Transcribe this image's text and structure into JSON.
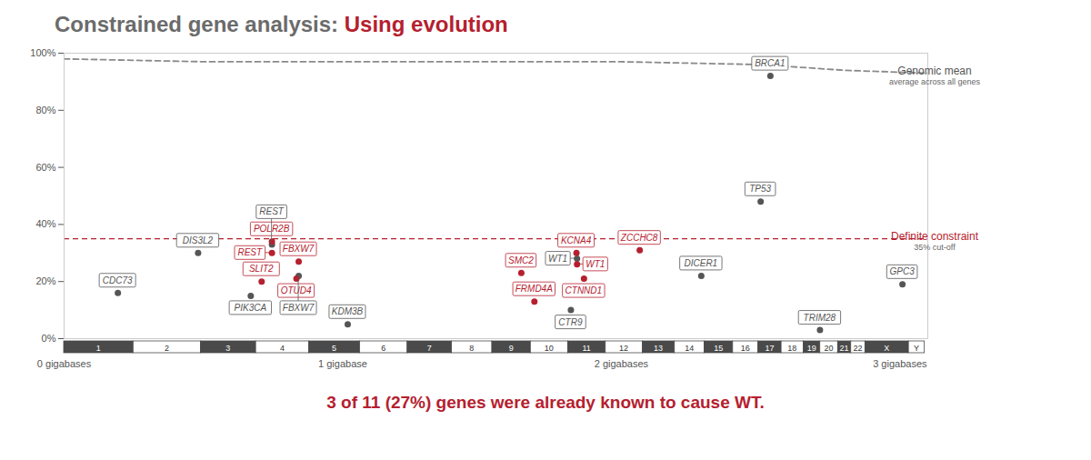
{
  "chart_data": {
    "type": "scatter",
    "title": "Constrained gene analysis:",
    "title_highlight": "Using evolution",
    "caption": "3 of 11 (27%) genes were already known to cause WT.",
    "xlim": [
      0,
      3.1
    ],
    "xticks": [
      {
        "value": 0,
        "label": "0 gigabases"
      },
      {
        "value": 1,
        "label": "1 gigabase"
      },
      {
        "value": 2,
        "label": "2 gigabases"
      },
      {
        "value": 3,
        "label": "3 gigabases"
      }
    ],
    "ylim": [
      0,
      100
    ],
    "yticks": [
      {
        "value": 0,
        "label": "0%"
      },
      {
        "value": 20,
        "label": "20%"
      },
      {
        "value": 40,
        "label": "40%"
      },
      {
        "value": 60,
        "label": "60%"
      },
      {
        "value": 80,
        "label": "80%"
      },
      {
        "value": 100,
        "label": "100%"
      }
    ],
    "grid": false,
    "series": [
      {
        "color": "#555555",
        "labels": [
          "CDC73",
          "DIS3L2",
          "PIK3CA",
          "REST",
          "FBXW7",
          "KDM3B",
          "CTR9",
          "WT1",
          "DICER1",
          "TP53",
          "BRCA1",
          "TRIM28",
          "GPC3"
        ],
        "x": [
          0.193,
          0.481,
          0.67,
          0.746,
          0.842,
          1.018,
          1.819,
          1.841,
          2.287,
          2.5,
          2.535,
          2.713,
          3.009
        ],
        "values": [
          16,
          30,
          15,
          33,
          22,
          5,
          10,
          28,
          22,
          48,
          92,
          3,
          19
        ]
      },
      {
        "color": "#b5202e",
        "labels": [
          "POLR2B",
          "REST",
          "FBXW7",
          "OTUD4",
          "SLIT2",
          "SMC2",
          "FRMD4A",
          "WT1",
          "KCNA4",
          "CTNND1",
          "ZCCHC8"
        ],
        "x": [
          0.746,
          0.746,
          0.842,
          0.834,
          0.709,
          1.641,
          1.688,
          1.841,
          1.839,
          1.866,
          2.066
        ],
        "values": [
          34,
          30,
          27,
          21,
          20,
          23,
          13,
          26,
          30,
          21,
          31
        ]
      }
    ],
    "reference_lines": [
      {
        "label": "Genomic mean",
        "sublabel": "average across all genes",
        "color": "#8a8a8a",
        "line_style": "dashed",
        "x": [
          0,
          0.5,
          1,
          1.5,
          2,
          2.5,
          2.8,
          3.1
        ],
        "values": [
          98,
          97,
          97,
          97,
          97,
          96,
          94,
          93
        ]
      },
      {
        "label": "Definite constraint",
        "sublabel": "35% cut-off",
        "color": "#b5202e",
        "line_style": "dashed",
        "value": 35
      }
    ],
    "chromosomes": {
      "names": [
        "1",
        "2",
        "3",
        "4",
        "5",
        "6",
        "7",
        "8",
        "9",
        "10",
        "11",
        "12",
        "13",
        "14",
        "15",
        "16",
        "17",
        "18",
        "19",
        "20",
        "21",
        "22",
        "X",
        "Y"
      ],
      "bounds": [
        0,
        0.249,
        0.491,
        0.689,
        0.88,
        1.062,
        1.233,
        1.392,
        1.537,
        1.675,
        1.809,
        1.944,
        2.077,
        2.192,
        2.299,
        2.401,
        2.492,
        2.575,
        2.655,
        2.714,
        2.778,
        2.825,
        2.876,
        3.032,
        3.089
      ]
    }
  }
}
